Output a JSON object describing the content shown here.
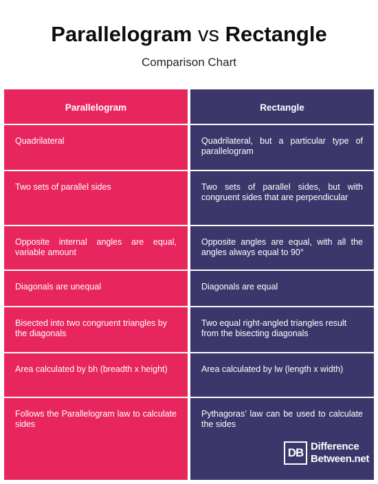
{
  "header": {
    "title_left": "Parallelogram",
    "title_vs": "vs",
    "title_right": "Rectangle",
    "subtitle": "Comparison Chart"
  },
  "table": {
    "columns": [
      "Parallelogram",
      "Rectangle"
    ],
    "rows": [
      [
        "Quadrilateral",
        "Quadrilateral, but a particular type of parallelogram"
      ],
      [
        "Two sets of parallel sides",
        "Two sets of parallel sides, but with congruent sides that are perpendicular"
      ],
      [
        "Opposite internal angles are equal, variable amount",
        "Opposite angles are equal, with all the angles always equal to 90°"
      ],
      [
        "Diagonals are unequal",
        "Diagonals are equal"
      ],
      [
        "Bisected into two congruent triangles by the diagonals",
        "Two equal right-angled triangles result from the bisecting diagonals"
      ],
      [
        "Area calculated by bh (breadth x height)",
        "Area calculated by lw (length x width)"
      ],
      [
        "Follows the Parallelogram law to calculate sides",
        "Pythagoras’ law can be used to calculate the sides"
      ]
    ]
  },
  "logo": {
    "mark": "DB",
    "line1": "Difference",
    "line2": "Between.net"
  },
  "colors": {
    "left_column": "#e8265e",
    "right_column": "#3c376b"
  }
}
